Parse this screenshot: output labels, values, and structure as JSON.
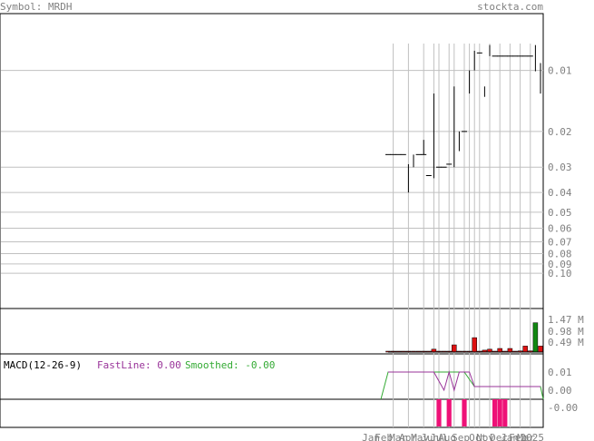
{
  "header": {
    "symbol_label": "Symbol: MRDH",
    "site": "stockta.com"
  },
  "colors": {
    "grid": "#c0c0c0",
    "axis_text": "#808080",
    "header_text": "#808080",
    "bear": "#dd1111",
    "bull": "#ffffff",
    "volume_green": "#118811",
    "fastline": "#993399",
    "smoothed": "#33aa33",
    "histogram": "#ee1177"
  },
  "macd": {
    "title": "MACD(12-26-9)",
    "fast_label": "FastLine: 0.00",
    "smooth_label": "Smoothed: -0.00",
    "ticks": [
      "0.01",
      "0.00",
      "-0.00"
    ]
  },
  "chart_data": {
    "type": "candlestick",
    "price_axis": {
      "scale": "log",
      "ticks": [
        0.1,
        0.09,
        0.08,
        0.07,
        0.06,
        0.05,
        0.04,
        0.03,
        0.02,
        0.01
      ]
    },
    "volume_axis": {
      "ticks": [
        "1.47 M",
        "0.98 M",
        "0.49 M"
      ],
      "max": 1.9
    },
    "x_axis": {
      "labels": [
        "Jan",
        "Feb",
        "Mar",
        "Apr",
        "May",
        "Jun",
        "Jul",
        "Aug",
        "Sep",
        "Oct",
        "Nov",
        "Dec",
        "Jan",
        "Feb",
        "Mar",
        "2025"
      ]
    },
    "candles": [
      {
        "o": 0.026,
        "h": 0.026,
        "l": 0.026,
        "c": 0.026,
        "v": 0.02
      },
      {
        "o": 0.026,
        "h": 0.026,
        "l": 0.026,
        "c": 0.026,
        "v": 0.02
      },
      {
        "o": 0.026,
        "h": 0.026,
        "l": 0.026,
        "c": 0.026,
        "v": 0.02
      },
      {
        "o": 0.026,
        "h": 0.026,
        "l": 0.026,
        "c": 0.026,
        "v": 0.02
      },
      {
        "o": 0.029,
        "h": 0.04,
        "l": 0.029,
        "c": 0.04,
        "v": 0.03
      },
      {
        "o": 0.03,
        "h": 0.03,
        "l": 0.026,
        "c": 0.026,
        "v": 0.03
      },
      {
        "o": 0.026,
        "h": 0.026,
        "l": 0.026,
        "c": 0.026,
        "v": 0.02
      },
      {
        "o": 0.026,
        "h": 0.026,
        "l": 0.022,
        "c": 0.026,
        "v": 0.02
      },
      {
        "o": 0.033,
        "h": 0.033,
        "l": 0.033,
        "c": 0.033,
        "v": 0.02
      },
      {
        "o": 0.03,
        "h": 0.034,
        "l": 0.013,
        "c": 0.013,
        "v": 0.12
      },
      {
        "o": 0.03,
        "h": 0.03,
        "l": 0.03,
        "c": 0.03,
        "v": 0.02
      },
      {
        "o": 0.03,
        "h": 0.03,
        "l": 0.03,
        "c": 0.03,
        "v": 0.02
      },
      {
        "o": 0.029,
        "h": 0.029,
        "l": 0.029,
        "c": 0.029,
        "v": 0.02
      },
      {
        "o": 0.03,
        "h": 0.03,
        "l": 0.012,
        "c": 0.019,
        "v": 0.3
      },
      {
        "o": 0.02,
        "h": 0.025,
        "l": 0.02,
        "c": 0.025,
        "v": 0.02
      },
      {
        "o": 0.02,
        "h": 0.02,
        "l": 0.02,
        "c": 0.02,
        "v": 0.02
      },
      {
        "o": 0.01,
        "h": 0.013,
        "l": 0.01,
        "c": 0.013,
        "v": 0.02
      },
      {
        "o": 0.01,
        "h": 0.01,
        "l": 0.008,
        "c": 0.008,
        "v": 0.6
      },
      {
        "o": 0.0082,
        "h": 0.0082,
        "l": 0.0082,
        "c": 0.0082,
        "v": 0.02
      },
      {
        "o": 0.0135,
        "h": 0.0135,
        "l": 0.012,
        "c": 0.012,
        "v": 0.08
      },
      {
        "o": 0.0085,
        "h": 0.0085,
        "l": 0.0075,
        "c": 0.0075,
        "v": 0.12
      },
      {
        "o": 0.0085,
        "h": 0.0085,
        "l": 0.0085,
        "c": 0.0085,
        "v": 0.02
      },
      {
        "o": 0.0085,
        "h": 0.0085,
        "l": 0.0085,
        "c": 0.0085,
        "v": 0.15
      },
      {
        "o": 0.0085,
        "h": 0.0085,
        "l": 0.0085,
        "c": 0.0085,
        "v": 0.02
      },
      {
        "o": 0.0085,
        "h": 0.0085,
        "l": 0.0085,
        "c": 0.0085,
        "v": 0.15
      },
      {
        "o": 0.0085,
        "h": 0.0085,
        "l": 0.0085,
        "c": 0.0085,
        "v": 0.02
      },
      {
        "o": 0.0085,
        "h": 0.0085,
        "l": 0.0085,
        "c": 0.0085,
        "v": 0.05
      },
      {
        "o": 0.0085,
        "h": 0.0085,
        "l": 0.0085,
        "c": 0.0085,
        "v": 0.25
      },
      {
        "o": 0.0085,
        "h": 0.0085,
        "l": 0.0085,
        "c": 0.0085,
        "v": 0.05
      },
      {
        "o": 0.008,
        "h": 0.0101,
        "l": 0.0075,
        "c": 0.0101,
        "v": 1.22
      },
      {
        "o": 0.0118,
        "h": 0.013,
        "l": 0.0092,
        "c": 0.0096,
        "v": 0.25
      }
    ],
    "macd": {
      "fastline": [
        0.01,
        0.01,
        0.01,
        0.01,
        0.01,
        0.01,
        0.01,
        0.01,
        0.01,
        0.01,
        0.005,
        0.0,
        0.01,
        0.0,
        0.01,
        0.01,
        0.01,
        0.002,
        0.002,
        0.002,
        0.002,
        0.002,
        0.002,
        0.002,
        0.002,
        0.002,
        0.002,
        0.002,
        0.002,
        0.002,
        0.002
      ],
      "smoothed": [
        0.01,
        0.01,
        0.01,
        0.01,
        0.01,
        0.01,
        0.01,
        0.01,
        0.01,
        0.01,
        0.01,
        0.01,
        0.01,
        0.01,
        0.01,
        0.01,
        0.006,
        0.002,
        0.002,
        0.002,
        0.002,
        0.002,
        0.002,
        0.002,
        0.002,
        0.002,
        0.002,
        0.002,
        0.002,
        0.002,
        0.002
      ],
      "histogram": [
        0.0,
        0.0,
        0.0,
        0.0,
        0.0,
        0.0,
        0.0,
        0.0,
        0.0,
        0.0,
        -0.006,
        0.0,
        -0.006,
        0.0,
        0.0,
        -0.006,
        0.0,
        0.0,
        0.0,
        0.0,
        0.0,
        -0.006,
        -0.006,
        -0.006,
        0.0,
        0.0,
        0.0,
        0.0,
        0.0,
        0.0,
        0.0
      ],
      "ylim": [
        -0.007,
        0.012
      ]
    }
  }
}
